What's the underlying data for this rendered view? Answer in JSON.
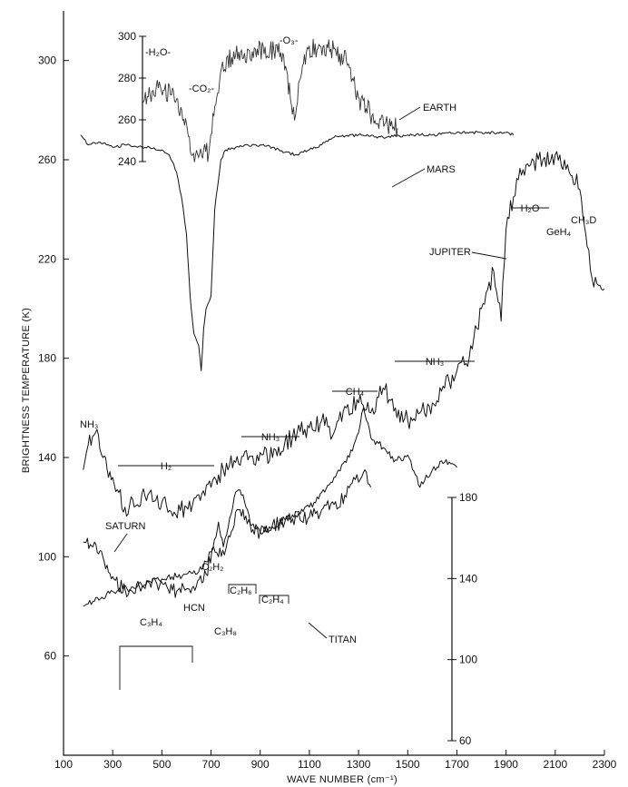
{
  "chart_data": [
    {
      "id": "main",
      "type": "line",
      "xlabel": "WAVE NUMBER (cm⁻¹)",
      "ylabel": "BRIGHTNESS TEMPERATURE (K)",
      "xlim": [
        100,
        2300
      ],
      "ylim": [
        20,
        320
      ],
      "x_ticks": [
        100,
        300,
        500,
        700,
        900,
        1100,
        1300,
        1500,
        1700,
        1900,
        2100,
        2300
      ],
      "y_ticks": [
        60,
        100,
        140,
        180,
        220,
        260,
        300
      ],
      "series": [
        {
          "name": "MARS",
          "x": [
            170,
            200,
            250,
            300,
            350,
            400,
            450,
            500,
            530,
            560,
            580,
            600,
            615,
            630,
            650,
            660,
            670,
            680,
            700,
            715,
            740,
            760,
            800,
            850,
            900,
            950,
            1000,
            1050,
            1100,
            1150,
            1200,
            1300,
            1400,
            1500,
            1600,
            1700,
            1800,
            1900,
            1930
          ],
          "y": [
            270,
            266,
            267,
            265,
            266,
            265,
            265,
            264,
            262,
            255,
            245,
            230,
            205,
            190,
            185,
            175,
            192,
            200,
            205,
            240,
            260,
            264,
            265,
            266,
            266,
            265,
            263,
            262,
            264,
            266,
            269,
            270,
            269,
            270,
            270,
            271,
            271,
            271,
            270
          ]
        },
        {
          "name": "JUPITER",
          "x": [
            180,
            200,
            230,
            260,
            300,
            350,
            400,
            450,
            500,
            550,
            600,
            650,
            700,
            720,
            730,
            750,
            800,
            850,
            900,
            950,
            1000,
            1050,
            1100,
            1150,
            1200,
            1250,
            1300,
            1350,
            1400,
            1450,
            1500,
            1550,
            1600,
            1650,
            1700,
            1750,
            1800,
            1850,
            1880,
            1900,
            1930,
            1950,
            2000,
            2050,
            2100,
            2150,
            2200,
            2230,
            2250,
            2270,
            2300
          ],
          "y": [
            135,
            145,
            150,
            140,
            132,
            120,
            121,
            126,
            122,
            118,
            120,
            125,
            128,
            131,
            133,
            135,
            138,
            139,
            142,
            140,
            146,
            150,
            152,
            155,
            150,
            160,
            162,
            158,
            168,
            160,
            155,
            158,
            162,
            168,
            175,
            180,
            200,
            215,
            195,
            232,
            245,
            252,
            258,
            260,
            262,
            258,
            248,
            225,
            212,
            210,
            208
          ]
        },
        {
          "name": "SATURN",
          "x": [
            180,
            220,
            260,
            300,
            340,
            380,
            420,
            480,
            520,
            560,
            600,
            640,
            680,
            710,
            730,
            760,
            800,
            830,
            870,
            900,
            950,
            1000,
            1050,
            1100,
            1150,
            1200,
            1250,
            1280,
            1300,
            1320,
            1350
          ],
          "y": [
            106,
            104,
            100,
            92,
            87,
            86,
            88,
            89,
            88,
            86,
            87,
            88,
            93,
            104,
            100,
            103,
            118,
            119,
            111,
            110,
            113,
            114,
            116,
            116,
            119,
            121,
            124,
            132,
            130,
            134,
            128
          ]
        },
        {
          "name": "TITAN",
          "x": [
            180,
            200,
            250,
            300,
            400,
            500,
            600,
            650,
            680,
            700,
            720,
            730,
            740,
            750,
            770,
            800,
            830,
            860,
            900,
            950,
            1000,
            1050,
            1100,
            1150,
            1200,
            1250,
            1300,
            1320,
            1350,
            1400,
            1450,
            1500,
            1550,
            1600,
            1650,
            1700
          ],
          "y": [
            80,
            81,
            83,
            86,
            88,
            91,
            93,
            94,
            98,
            102,
            108,
            114,
            108,
            104,
            112,
            126,
            125,
            113,
            110,
            112,
            115,
            118,
            120,
            126,
            132,
            138,
            150,
            160,
            148,
            144,
            139,
            141,
            128,
            135,
            138,
            136
          ]
        }
      ],
      "annotations": [
        {
          "text": "MARS"
        },
        {
          "text": "JUPITER"
        },
        {
          "text": "SATURN"
        },
        {
          "text": "TITAN"
        },
        {
          "text": "NH₃"
        },
        {
          "text": "H₂"
        },
        {
          "text": "NH₃"
        },
        {
          "text": "CH₄"
        },
        {
          "text": "NH₃"
        },
        {
          "text": "H₂O"
        },
        {
          "text": "CH₃D"
        },
        {
          "text": "GeH₄"
        },
        {
          "text": "C₂H₂"
        },
        {
          "text": "HCN"
        },
        {
          "text": "C₂H₆"
        },
        {
          "text": "C₂H₄"
        },
        {
          "text": "C₃H₄"
        },
        {
          "text": "C₃H₈"
        }
      ]
    },
    {
      "id": "earth-inset",
      "type": "line",
      "ylim": [
        240,
        300
      ],
      "y_ticks": [
        240,
        260,
        280,
        300
      ],
      "series": [
        {
          "name": "EARTH",
          "x": [
            450,
            480,
            520,
            560,
            600,
            630,
            650,
            670,
            690,
            710,
            730,
            760,
            800,
            850,
            900,
            950,
            1000,
            1030,
            1050,
            1070,
            1100,
            1150,
            1200,
            1250,
            1300,
            1350,
            1400,
            1450
          ],
          "y": [
            268,
            272,
            276,
            272,
            266,
            252,
            244,
            242,
            246,
            244,
            262,
            285,
            290,
            292,
            294,
            293,
            292,
            270,
            262,
            280,
            294,
            295,
            294,
            288,
            270,
            262,
            258,
            256
          ]
        }
      ],
      "annotations": [
        {
          "text": "EARTH"
        },
        {
          "text": "-H₂O-"
        },
        {
          "text": "-CO₂-"
        },
        {
          "text": "-O₃-"
        }
      ]
    },
    {
      "id": "titan-right-axis",
      "type": "line",
      "ylim": [
        60,
        180
      ],
      "y_ticks": [
        60,
        100,
        140,
        180
      ]
    }
  ]
}
